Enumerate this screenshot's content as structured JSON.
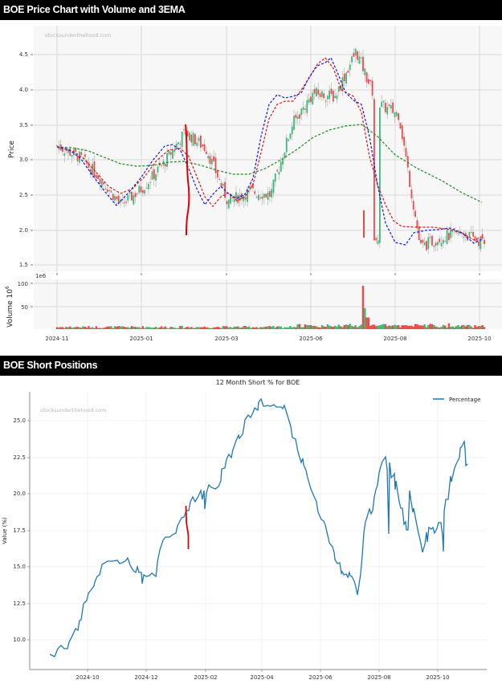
{
  "price_section": {
    "header": "BOE Price Chart with Volume and 3EMA",
    "watermark": "stocksunderthehood.com",
    "ylabel": "Price",
    "volume_ylabel": "Volume  10",
    "volume_ylabel_sup": "6",
    "volume_offset_label": "1e6"
  },
  "short_section": {
    "header": "BOE Short Positions",
    "title": "12 Month Short % for BOE",
    "watermark": "stocksunderthehood.com",
    "ylabel": "Value (%)",
    "legend_label": "Percentage"
  },
  "chart_data": [
    {
      "type": "candlestick",
      "title": "BOE Price Chart with Volume and 3EMA",
      "ylabel": "Price",
      "ylim": [
        1.45,
        4.85
      ],
      "yticks": [
        "1.5",
        "2.0",
        "2.5",
        "3.0",
        "3.5",
        "4.0",
        "4.5"
      ],
      "xticks": [
        "2024-11",
        "2025-01",
        "2025-03",
        "2025-06",
        "2025-08",
        "2025-10"
      ],
      "grid": true,
      "colors": {
        "up": "#3cb878",
        "down": "#f04848",
        "ema_fast": "#1515e0",
        "ema_mid": "#e01515",
        "ema_slow": "#1a8a1a",
        "annotation": "#e00000"
      },
      "series": [
        {
          "name": "Close (approx)",
          "x": [
            0,
            0.05,
            0.1,
            0.15,
            0.2,
            0.25,
            0.3,
            0.35,
            0.4,
            0.45,
            0.5,
            0.55,
            0.6,
            0.65,
            0.7,
            0.75,
            0.8,
            0.85,
            0.9,
            0.95,
            1.0
          ],
          "values": [
            3.2,
            3.05,
            2.75,
            2.35,
            2.6,
            2.95,
            3.4,
            3.15,
            2.4,
            2.55,
            2.5,
            3.5,
            3.95,
            3.9,
            4.55,
            3.8,
            3.65,
            1.75,
            1.9,
            1.95,
            1.8
          ]
        },
        {
          "name": "EMA fast (blue)",
          "values": [
            3.2,
            3.08,
            2.85,
            2.4,
            2.55,
            2.85,
            3.25,
            3.05,
            2.35,
            2.6,
            2.4,
            3.15,
            3.85,
            3.8,
            4.45,
            3.7,
            2.35,
            1.7,
            2.0,
            2.0,
            1.85
          ]
        },
        {
          "name": "EMA mid (red)",
          "values": [
            3.2,
            3.12,
            2.9,
            2.5,
            2.55,
            2.75,
            3.1,
            3.05,
            2.5,
            2.55,
            2.45,
            2.9,
            3.6,
            3.75,
            4.3,
            3.85,
            2.6,
            1.95,
            1.97,
            1.98,
            1.85
          ]
        },
        {
          "name": "EMA slow (green)",
          "values": [
            3.18,
            3.16,
            3.05,
            2.95,
            2.92,
            2.92,
            2.98,
            2.95,
            2.88,
            2.78,
            2.75,
            2.9,
            3.15,
            3.35,
            3.5,
            3.5,
            3.15,
            2.85,
            2.65,
            2.5,
            2.38
          ]
        }
      ]
    },
    {
      "type": "bar",
      "title": "Volume",
      "ylabel": "Volume 10^6",
      "ylim": [
        0,
        105
      ],
      "yticks": [
        "50",
        "100"
      ],
      "xticks": [
        "2024-11",
        "2025-01",
        "2025-03",
        "2025-06",
        "2025-08",
        "2025-10"
      ],
      "notable": {
        "spike_date_approx": "2025-07",
        "spike_value": 93
      }
    },
    {
      "type": "line",
      "title": "12 Month Short % for BOE",
      "xlabel": "",
      "ylabel": "Value (%)",
      "ylim": [
        7.3,
        27
      ],
      "yticks": [
        "10.0",
        "12.5",
        "15.0",
        "17.5",
        "20.0",
        "22.5",
        "25.0"
      ],
      "xticks": [
        "2024-10",
        "2024-12",
        "2025-02",
        "2025-04",
        "2025-06",
        "2025-08",
        "2025-10"
      ],
      "legend": [
        "Percentage"
      ],
      "legend_position": "upper right",
      "grid": true,
      "color": "#1f77b4",
      "series": [
        {
          "name": "Percentage",
          "x": [
            "2024-08-20",
            "2024-09-01",
            "2024-09-10",
            "2024-09-20",
            "2024-10-01",
            "2024-10-15",
            "2024-11-01",
            "2024-11-15",
            "2024-11-25",
            "2024-12-01",
            "2024-12-15",
            "2024-12-25",
            "2025-01-10",
            "2025-01-25",
            "2025-02-10",
            "2025-02-25",
            "2025-03-10",
            "2025-03-25",
            "2025-04-05",
            "2025-04-20",
            "2025-05-05",
            "2025-05-20",
            "2025-06-05",
            "2025-06-20",
            "2025-07-05",
            "2025-07-25",
            "2025-08-01",
            "2025-08-10",
            "2025-08-20",
            "2025-09-01",
            "2025-09-15",
            "2025-09-25",
            "2025-10-05",
            "2025-10-20",
            "2025-11-01"
          ],
          "values": [
            9.0,
            9.5,
            9.4,
            10.8,
            13.2,
            14.3,
            15.4,
            15.4,
            14.6,
            14.7,
            14.2,
            14.5,
            16.8,
            17.4,
            19.4,
            19.7,
            20.2,
            21.5,
            23.8,
            25.9,
            25.8,
            25.8,
            23.2,
            20.0,
            17.5,
            13.0,
            18.5,
            20.3,
            22.6,
            19.8,
            19.0,
            17.2,
            18.6,
            21.0,
            23.5
          ]
        },
        {
          "name": "Annotation (red)",
          "x": [
            "2025-01-22",
            "2025-01-25"
          ],
          "values": [
            19.2,
            16.2
          ]
        }
      ]
    }
  ]
}
